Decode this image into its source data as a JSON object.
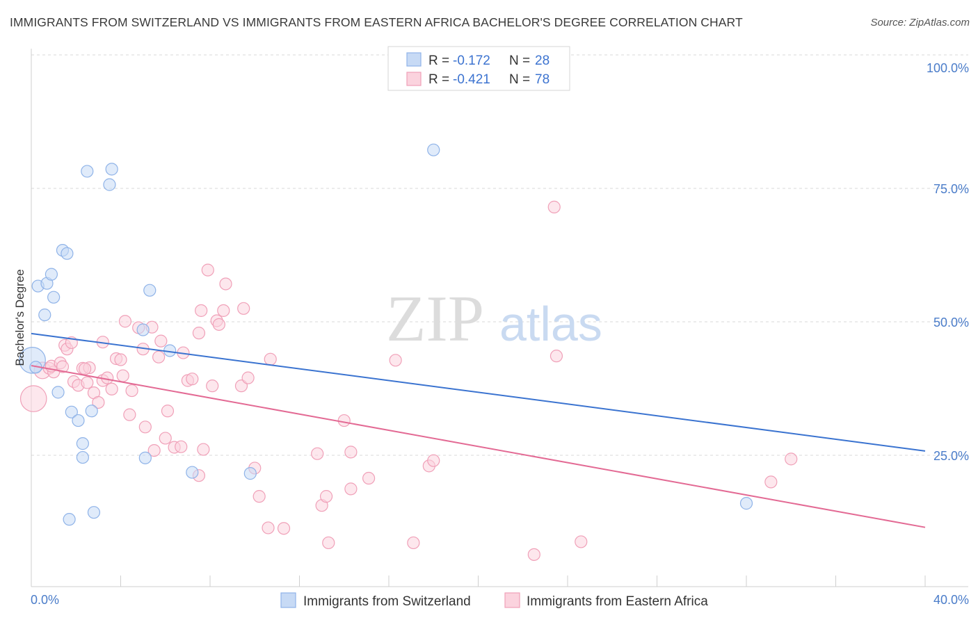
{
  "header": {
    "title": "IMMIGRANTS FROM SWITZERLAND VS IMMIGRANTS FROM EASTERN AFRICA BACHELOR'S DEGREE CORRELATION CHART",
    "source": "Source: ZipAtlas.com"
  },
  "watermark": {
    "zip": "ZIP",
    "atlas": "atlas"
  },
  "colors": {
    "blue": "#8fb3e8",
    "blue_fill": "#c7daf5",
    "blue_line": "#3a73d0",
    "pink": "#f0a0b8",
    "pink_fill": "#fbd3de",
    "pink_line": "#e36a94",
    "grid": "#d8d8d8",
    "tick_text": "#4a7cc9"
  },
  "legend": {
    "rows": [
      {
        "r_label": "R =",
        "r_value": "-0.172",
        "n_label": "N =",
        "n_value": "28"
      },
      {
        "r_label": "R =",
        "r_value": "-0.421",
        "n_label": "N =",
        "n_value": "78"
      }
    ]
  },
  "chart_data": {
    "type": "scatter",
    "title": "IMMIGRANTS FROM SWITZERLAND VS IMMIGRANTS FROM EASTERN AFRICA BACHELOR'S DEGREE CORRELATION CHART",
    "xlabel": "",
    "ylabel": "Bachelor's Degree",
    "xlim": [
      0,
      40
    ],
    "ylim": [
      0,
      105
    ],
    "x_tick_labels": [
      "0.0%",
      "40.0%"
    ],
    "y_ticks": [
      {
        "value": 25,
        "label": "25.0%"
      },
      {
        "value": 50,
        "label": "50.0%"
      },
      {
        "value": 75,
        "label": "75.0%"
      },
      {
        "value": 100,
        "label": "100.0%"
      }
    ],
    "series": [
      {
        "name": "Immigrants from Switzerland",
        "color": "blue",
        "trend": {
          "x0": 0,
          "y0": 47.8,
          "x1": 40,
          "y1": 25.8
        },
        "points": [
          [
            0.05,
            42.8,
            2.2
          ],
          [
            0.3,
            56.7,
            1
          ],
          [
            0.7,
            57.2,
            1
          ],
          [
            0.9,
            58.9,
            1
          ],
          [
            1.4,
            63.4,
            1
          ],
          [
            1.6,
            62.8,
            1
          ],
          [
            0.6,
            51.3,
            1
          ],
          [
            1.0,
            54.6,
            1
          ],
          [
            2.5,
            78.2,
            1
          ],
          [
            3.6,
            78.6,
            1
          ],
          [
            3.5,
            75.7,
            1
          ],
          [
            5.3,
            55.9,
            1
          ],
          [
            5.0,
            48.5,
            1
          ],
          [
            6.2,
            44.6,
            1
          ],
          [
            1.2,
            36.8,
            1
          ],
          [
            1.8,
            33.1,
            1
          ],
          [
            2.1,
            31.5,
            1
          ],
          [
            2.7,
            33.3,
            1
          ],
          [
            2.3,
            27.2,
            1
          ],
          [
            2.3,
            24.6,
            1
          ],
          [
            5.1,
            24.5,
            1
          ],
          [
            7.2,
            21.8,
            1
          ],
          [
            9.8,
            21.6,
            1
          ],
          [
            1.7,
            13.0,
            1
          ],
          [
            2.8,
            14.3,
            1
          ],
          [
            18.0,
            82.2,
            1
          ],
          [
            32.0,
            16.0,
            1
          ],
          [
            0.2,
            41.5,
            1
          ]
        ]
      },
      {
        "name": "Immigrants from Eastern Africa",
        "color": "pink",
        "trend": {
          "x0": 0,
          "y0": 41.8,
          "x1": 40,
          "y1": 11.5
        },
        "points": [
          [
            0.1,
            35.6,
            2.2
          ],
          [
            0.5,
            40.9,
            1.4
          ],
          [
            0.8,
            41.3,
            1
          ],
          [
            1.0,
            40.6,
            1
          ],
          [
            0.9,
            41.7,
            1
          ],
          [
            1.3,
            42.3,
            1
          ],
          [
            1.5,
            45.6,
            1
          ],
          [
            1.6,
            44.9,
            1
          ],
          [
            1.8,
            46.1,
            1
          ],
          [
            1.9,
            38.8,
            1
          ],
          [
            2.1,
            38.1,
            1
          ],
          [
            2.3,
            41.3,
            1
          ],
          [
            2.5,
            38.6,
            1
          ],
          [
            2.6,
            41.4,
            1
          ],
          [
            2.8,
            36.7,
            1
          ],
          [
            3.0,
            34.9,
            1
          ],
          [
            3.2,
            39.0,
            1
          ],
          [
            3.2,
            46.2,
            1
          ],
          [
            3.4,
            39.5,
            1
          ],
          [
            3.6,
            37.4,
            1
          ],
          [
            3.8,
            43.1,
            1
          ],
          [
            4.0,
            42.9,
            1
          ],
          [
            4.1,
            39.9,
            1
          ],
          [
            4.2,
            50.1,
            1
          ],
          [
            4.4,
            32.6,
            1
          ],
          [
            4.5,
            37.1,
            1
          ],
          [
            4.8,
            48.9,
            1
          ],
          [
            5.0,
            44.9,
            1
          ],
          [
            5.1,
            30.3,
            1
          ],
          [
            5.4,
            49.0,
            1
          ],
          [
            5.5,
            25.9,
            1
          ],
          [
            5.7,
            43.4,
            1
          ],
          [
            5.8,
            46.4,
            1
          ],
          [
            6.0,
            28.2,
            1
          ],
          [
            6.1,
            33.3,
            1
          ],
          [
            6.4,
            26.5,
            1
          ],
          [
            6.7,
            26.6,
            1
          ],
          [
            6.8,
            44.2,
            1
          ],
          [
            7.0,
            39.0,
            1
          ],
          [
            7.2,
            39.3,
            1
          ],
          [
            7.5,
            47.9,
            1
          ],
          [
            7.6,
            52.1,
            1
          ],
          [
            7.5,
            21.2,
            1
          ],
          [
            7.7,
            26.1,
            1
          ],
          [
            7.9,
            59.7,
            1
          ],
          [
            8.1,
            38.0,
            1
          ],
          [
            8.3,
            50.2,
            1
          ],
          [
            8.4,
            49.5,
            1
          ],
          [
            8.6,
            52.1,
            1
          ],
          [
            8.7,
            57.1,
            1
          ],
          [
            9.4,
            38.0,
            1
          ],
          [
            9.5,
            52.5,
            1
          ],
          [
            9.7,
            39.5,
            1
          ],
          [
            10.0,
            22.6,
            1
          ],
          [
            10.2,
            17.3,
            1
          ],
          [
            10.6,
            11.4,
            1
          ],
          [
            10.7,
            43.0,
            1
          ],
          [
            11.3,
            11.3,
            1
          ],
          [
            12.8,
            25.3,
            1
          ],
          [
            13.0,
            15.6,
            1
          ],
          [
            13.2,
            17.3,
            1
          ],
          [
            13.3,
            8.6,
            1
          ],
          [
            14.0,
            31.5,
            1
          ],
          [
            14.3,
            25.6,
            1
          ],
          [
            14.3,
            18.7,
            1
          ],
          [
            15.1,
            20.7,
            1
          ],
          [
            16.3,
            42.8,
            1
          ],
          [
            17.1,
            8.6,
            1
          ],
          [
            17.8,
            23.0,
            1
          ],
          [
            18.0,
            24.0,
            1
          ],
          [
            22.5,
            6.4,
            1
          ],
          [
            23.4,
            71.5,
            1
          ],
          [
            23.5,
            43.6,
            1
          ],
          [
            24.6,
            8.8,
            1
          ],
          [
            33.1,
            20.0,
            1
          ],
          [
            34.0,
            24.3,
            1
          ],
          [
            2.4,
            41.2,
            1
          ],
          [
            1.4,
            41.6,
            1
          ]
        ]
      }
    ]
  },
  "bottom_legend": {
    "items": [
      {
        "label": "Immigrants from Switzerland"
      },
      {
        "label": "Immigrants from Eastern Africa"
      }
    ]
  }
}
